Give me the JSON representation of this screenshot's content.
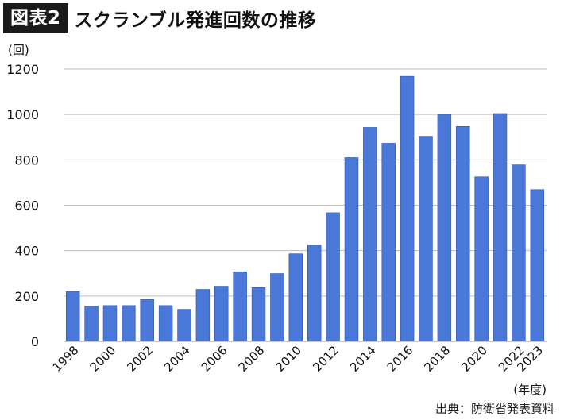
{
  "header": {
    "badge": "図表2",
    "title": "スクランブル発進回数の推移"
  },
  "source": "出典：防衛省発表資料",
  "chart_data": {
    "type": "bar",
    "ylabel": "(回)",
    "xlabel": "(年度)",
    "ylim": [
      0,
      1200
    ],
    "yticks": [
      0,
      200,
      400,
      600,
      800,
      1000,
      1200
    ],
    "grid": true,
    "bar_color": "#4a78d8",
    "bar_edge": "#2f55a8",
    "categories": [
      "1998",
      "1999",
      "2000",
      "2001",
      "2002",
      "2003",
      "2004",
      "2005",
      "2006",
      "2007",
      "2008",
      "2009",
      "2010",
      "2011",
      "2012",
      "2013",
      "2014",
      "2015",
      "2016",
      "2017",
      "2018",
      "2019",
      "2020",
      "2021",
      "2022",
      "2023"
    ],
    "x_tick_labels": [
      "1998",
      "2000",
      "2002",
      "2004",
      "2006",
      "2008",
      "2010",
      "2012",
      "2014",
      "2016",
      "2018",
      "2020",
      "2022",
      "2023"
    ],
    "values": [
      220,
      155,
      158,
      158,
      185,
      158,
      141,
      229,
      243,
      307,
      237,
      299,
      386,
      425,
      567,
      810,
      943,
      873,
      1168,
      904,
      999,
      947,
      725,
      1004,
      778,
      669
    ]
  }
}
